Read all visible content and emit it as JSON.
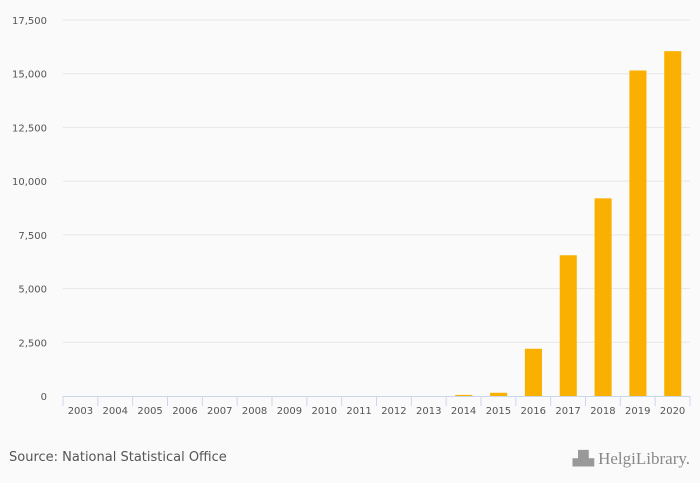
{
  "chart_data": {
    "type": "bar",
    "categories": [
      "2003",
      "2004",
      "2005",
      "2006",
      "2007",
      "2008",
      "2009",
      "2010",
      "2011",
      "2012",
      "2013",
      "2014",
      "2015",
      "2016",
      "2017",
      "2018",
      "2019",
      "2020"
    ],
    "values": [
      0,
      0,
      0,
      0,
      0,
      0,
      0,
      0,
      0,
      0,
      0,
      50,
      150,
      2200,
      6550,
      9200,
      15150,
      16050
    ],
    "ylim": [
      0,
      17500
    ],
    "yticks": [
      0,
      2500,
      5000,
      7500,
      10000,
      12500,
      15000,
      17500
    ],
    "ytick_labels": [
      "0",
      "2,500",
      "5,000",
      "7,500",
      "10,000",
      "12,500",
      "15,000",
      "17,500"
    ],
    "title": "",
    "xlabel": "",
    "ylabel": "",
    "grid": true,
    "bar_color": "#fab000"
  },
  "source": "Source: National Statistical Office",
  "logo": {
    "text": "HelgiLibrary."
  }
}
